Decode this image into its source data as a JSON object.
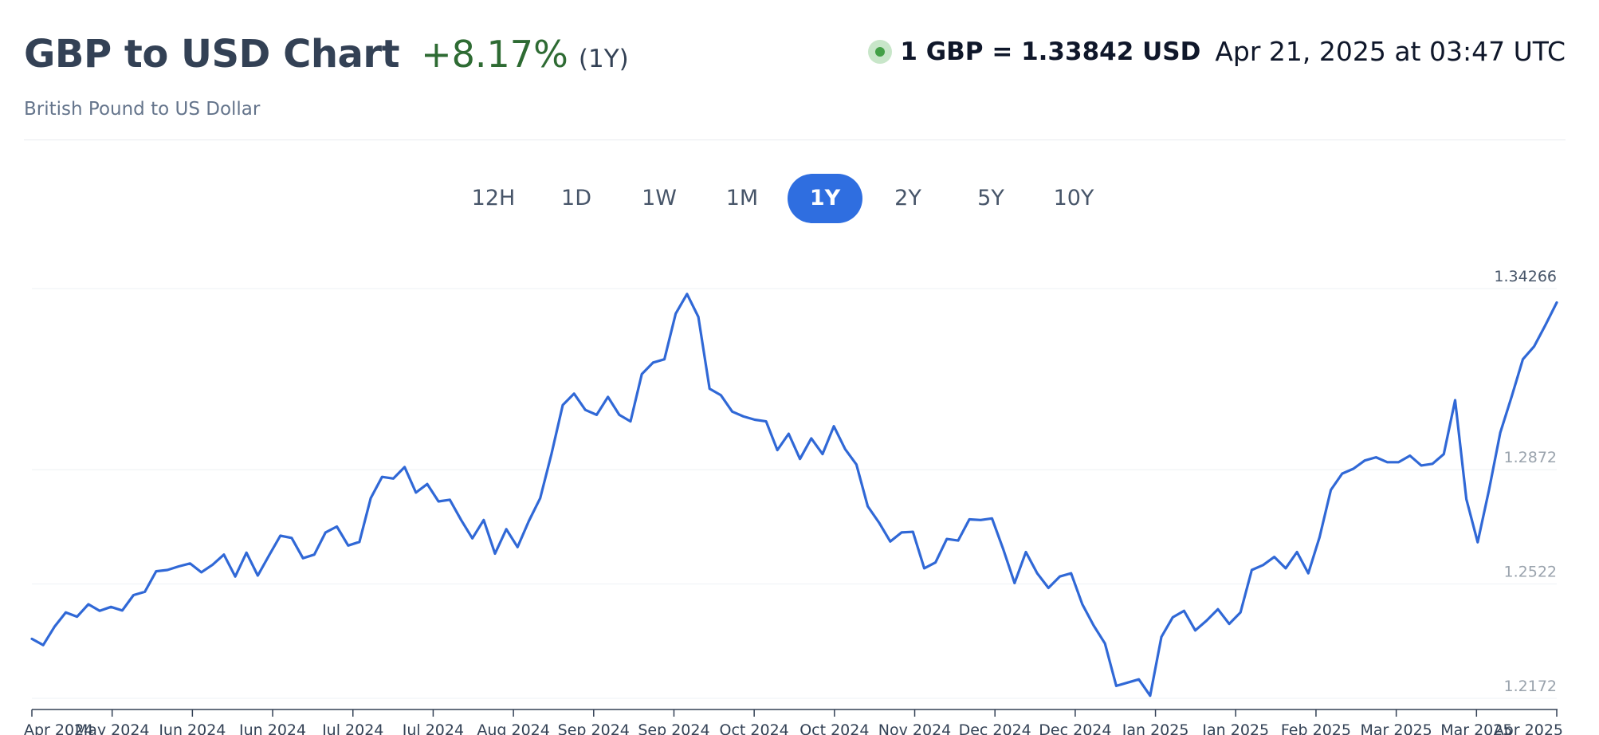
{
  "header": {
    "title": "GBP to USD Chart",
    "change": "+8.17%",
    "period": "(1Y)",
    "subtitle": "British Pound to US Dollar",
    "rate": "1 GBP = 1.33842 USD",
    "timestamp": "Apr 21, 2025 at 03:47 UTC"
  },
  "tabs": [
    {
      "label": "12H",
      "active": false
    },
    {
      "label": "1D",
      "active": false
    },
    {
      "label": "1W",
      "active": false
    },
    {
      "label": "1M",
      "active": false
    },
    {
      "label": "1Y",
      "active": true
    },
    {
      "label": "2Y",
      "active": false
    },
    {
      "label": "5Y",
      "active": false
    },
    {
      "label": "10Y",
      "active": false
    }
  ],
  "colors": {
    "line": "#3068d6",
    "accent": "#2f6ee0",
    "positive": "#2e6b33",
    "live_dot": "#43a047"
  },
  "chart_data": {
    "type": "line",
    "title": "",
    "xlabel": "",
    "ylabel": "",
    "ylim": [
      1.2172,
      1.34266
    ],
    "y_ticks": [
      "1.34266",
      "1.2872",
      "1.2522",
      "1.2172"
    ],
    "y_tick_values": [
      1.34266,
      1.2872,
      1.2522,
      1.2172
    ],
    "x_ticks": [
      "Apr 2024",
      "May 2024",
      "Jun 2024",
      "Jun 2024",
      "Jul 2024",
      "Jul 2024",
      "Aug 2024",
      "Sep 2024",
      "Sep 2024",
      "Oct 2024",
      "Oct 2024",
      "Nov 2024",
      "Dec 2024",
      "Dec 2024",
      "Jan 2025",
      "Jan 2025",
      "Feb 2025",
      "Mar 2025",
      "Mar 2025",
      "Apr 2025"
    ],
    "grid": true,
    "series": [
      {
        "values": [
          1.2354,
          1.2335,
          1.2391,
          1.2435,
          1.2422,
          1.246,
          1.244,
          1.2452,
          1.2441,
          1.2488,
          1.2498,
          1.2561,
          1.2565,
          1.2576,
          1.2585,
          1.2558,
          1.2581,
          1.2612,
          1.2545,
          1.2618,
          1.2548,
          1.261,
          1.267,
          1.2663,
          1.2601,
          1.2612,
          1.268,
          1.2698,
          1.264,
          1.2651,
          1.2785,
          1.285,
          1.2845,
          1.288,
          1.2802,
          1.2828,
          1.2775,
          1.278,
          1.2718,
          1.2662,
          1.2718,
          1.2615,
          1.269,
          1.2635,
          1.2715,
          1.2785,
          1.292,
          1.307,
          1.3105,
          1.3055,
          1.304,
          1.3095,
          1.304,
          1.302,
          1.3165,
          1.32,
          1.321,
          1.335,
          1.341,
          1.334,
          1.312,
          1.31,
          1.305,
          1.3035,
          1.3025,
          1.302,
          1.2932,
          1.2982,
          1.2905,
          1.2968,
          1.292,
          1.3005,
          1.2935,
          1.2888,
          1.276,
          1.271,
          1.2652,
          1.268,
          1.2682,
          1.257,
          1.2588,
          1.266,
          1.2655,
          1.272,
          1.2718,
          1.2723,
          1.2628,
          1.2525,
          1.262,
          1.2555,
          1.251,
          1.2545,
          1.2555,
          1.246,
          1.2395,
          1.234,
          1.221,
          1.222,
          1.223,
          1.218,
          1.236,
          1.242,
          1.244,
          1.238,
          1.241,
          1.2445,
          1.24,
          1.2435,
          1.2565,
          1.258,
          1.2605,
          1.257,
          1.262,
          1.2555,
          1.2665,
          1.281,
          1.286,
          1.2875,
          1.29,
          1.291,
          1.2895,
          1.2895,
          1.2915,
          1.2885,
          1.289,
          1.292,
          1.3085,
          1.2782,
          1.265,
          1.281,
          1.2985,
          1.3095,
          1.321,
          1.325,
          1.3315,
          1.3384
        ]
      }
    ]
  }
}
